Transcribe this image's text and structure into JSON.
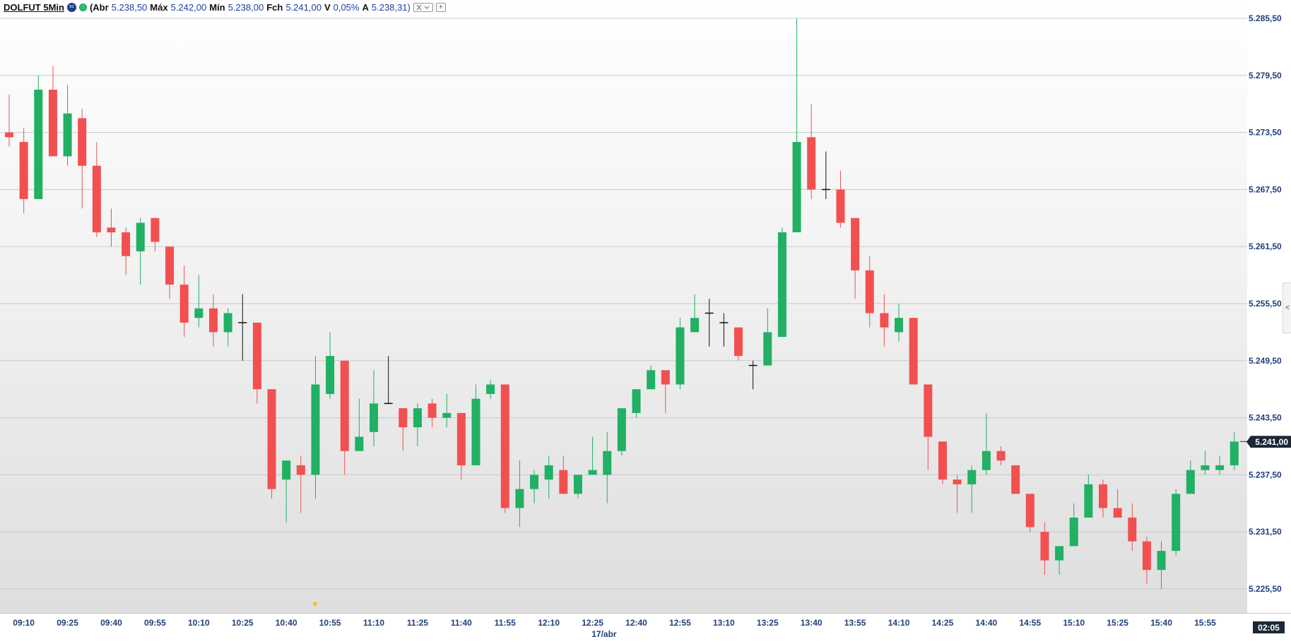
{
  "header": {
    "symbol": "DOLFUT",
    "interval": "5Min",
    "open_label": "(Abr",
    "open_value": "5.238,50",
    "high_label": "Máx",
    "high_value": "5.242,00",
    "low_label": "Mín",
    "low_value": "5.238,00",
    "close_label": "Fch",
    "close_value": "5.241,00",
    "change_label": "V",
    "change_value": "0,05%",
    "avg_label": "A",
    "avg_value": "5.238,31)",
    "settings_icon": "tools-icon",
    "add_icon": "plus-icon",
    "add_glyph": "+"
  },
  "current_price": "5.241,00",
  "countdown": "02:05",
  "date_label": "17/abr",
  "side_tab_glyph": "<",
  "colors": {
    "up": "#21b064",
    "down": "#f25050",
    "doji": "#111111",
    "grid": "#c9c9c9",
    "axis_text": "#1f3f7a"
  },
  "chart_data": {
    "type": "candlestick",
    "title": "",
    "xlabel": "",
    "ylabel": "",
    "ylim": [
      5225.5,
      5285.5
    ],
    "y_ticks": [
      5225.5,
      5231.5,
      5237.5,
      5243.5,
      5249.5,
      5255.5,
      5261.5,
      5267.5,
      5273.5,
      5279.5,
      5285.5
    ],
    "y_tick_labels": [
      "5.225,50",
      "5.231,50",
      "5.237,50",
      "5.243,50",
      "5.249,50",
      "5.255,50",
      "5.261,50",
      "5.267,50",
      "5.273,50",
      "5.279,50",
      "5.285,50"
    ],
    "x_tick_labels": [
      "09:10",
      "09:25",
      "09:40",
      "09:55",
      "10:10",
      "10:25",
      "10:40",
      "10:55",
      "11:10",
      "11:25",
      "11:40",
      "11:55",
      "12:10",
      "12:25",
      "12:40",
      "12:55",
      "13:10",
      "13:25",
      "13:40",
      "13:55",
      "14:10",
      "14:25",
      "14:40",
      "14:55",
      "15:10",
      "15:25",
      "15:40",
      "15:55"
    ],
    "first_bar_time": "09:05",
    "bar_interval_minutes": 5,
    "grid": true,
    "candles": [
      {
        "t": "09:05",
        "o": 5273.5,
        "h": 5277.5,
        "l": 5272.0,
        "c": 5273.0
      },
      {
        "t": "09:10",
        "o": 5272.5,
        "h": 5274.0,
        "l": 5265.0,
        "c": 5266.5
      },
      {
        "t": "09:15",
        "o": 5266.5,
        "h": 5279.5,
        "l": 5266.5,
        "c": 5278.0
      },
      {
        "t": "09:20",
        "o": 5278.0,
        "h": 5280.5,
        "l": 5271.0,
        "c": 5271.0
      },
      {
        "t": "09:25",
        "o": 5271.0,
        "h": 5278.5,
        "l": 5270.0,
        "c": 5275.5
      },
      {
        "t": "09:30",
        "o": 5275.0,
        "h": 5276.0,
        "l": 5265.5,
        "c": 5270.0
      },
      {
        "t": "09:35",
        "o": 5270.0,
        "h": 5272.5,
        "l": 5262.5,
        "c": 5263.0
      },
      {
        "t": "09:40",
        "o": 5263.5,
        "h": 5265.5,
        "l": 5261.5,
        "c": 5263.0
      },
      {
        "t": "09:45",
        "o": 5263.0,
        "h": 5263.5,
        "l": 5258.5,
        "c": 5260.5
      },
      {
        "t": "09:50",
        "o": 5261.0,
        "h": 5264.5,
        "l": 5257.5,
        "c": 5264.0
      },
      {
        "t": "09:55",
        "o": 5264.5,
        "h": 5264.5,
        "l": 5261.0,
        "c": 5262.0
      },
      {
        "t": "10:00",
        "o": 5261.5,
        "h": 5261.5,
        "l": 5256.0,
        "c": 5257.5
      },
      {
        "t": "10:05",
        "o": 5257.5,
        "h": 5259.5,
        "l": 5252.0,
        "c": 5253.5
      },
      {
        "t": "10:10",
        "o": 5254.0,
        "h": 5258.5,
        "l": 5253.0,
        "c": 5255.0
      },
      {
        "t": "10:15",
        "o": 5255.0,
        "h": 5256.5,
        "l": 5251.0,
        "c": 5252.5
      },
      {
        "t": "10:20",
        "o": 5252.5,
        "h": 5255.0,
        "l": 5251.0,
        "c": 5254.5
      },
      {
        "t": "10:25",
        "o": 5253.5,
        "h": 5256.5,
        "l": 5249.5,
        "c": 5253.5
      },
      {
        "t": "10:30",
        "o": 5253.5,
        "h": 5253.5,
        "l": 5245.0,
        "c": 5246.5
      },
      {
        "t": "10:35",
        "o": 5246.5,
        "h": 5246.5,
        "l": 5235.0,
        "c": 5236.0
      },
      {
        "t": "10:40",
        "o": 5237.0,
        "h": 5239.0,
        "l": 5232.5,
        "c": 5239.0
      },
      {
        "t": "10:45",
        "o": 5238.5,
        "h": 5239.5,
        "l": 5233.5,
        "c": 5237.5
      },
      {
        "t": "10:50",
        "o": 5237.5,
        "h": 5250.0,
        "l": 5235.0,
        "c": 5247.0
      },
      {
        "t": "10:55",
        "o": 5246.0,
        "h": 5252.5,
        "l": 5245.5,
        "c": 5250.0
      },
      {
        "t": "11:00",
        "o": 5249.5,
        "h": 5249.5,
        "l": 5237.5,
        "c": 5240.0
      },
      {
        "t": "11:05",
        "o": 5240.0,
        "h": 5245.5,
        "l": 5240.0,
        "c": 5241.5
      },
      {
        "t": "11:10",
        "o": 5242.0,
        "h": 5248.5,
        "l": 5240.5,
        "c": 5245.0
      },
      {
        "t": "11:15",
        "o": 5245.0,
        "h": 5250.0,
        "l": 5245.0,
        "c": 5245.0
      },
      {
        "t": "11:20",
        "o": 5244.5,
        "h": 5244.5,
        "l": 5240.0,
        "c": 5242.5
      },
      {
        "t": "11:25",
        "o": 5242.5,
        "h": 5245.0,
        "l": 5240.5,
        "c": 5244.5
      },
      {
        "t": "11:30",
        "o": 5245.0,
        "h": 5245.5,
        "l": 5242.5,
        "c": 5243.5
      },
      {
        "t": "11:35",
        "o": 5243.5,
        "h": 5246.0,
        "l": 5242.5,
        "c": 5244.0
      },
      {
        "t": "11:40",
        "o": 5244.0,
        "h": 5244.0,
        "l": 5237.0,
        "c": 5238.5
      },
      {
        "t": "11:45",
        "o": 5238.5,
        "h": 5247.0,
        "l": 5238.5,
        "c": 5245.5
      },
      {
        "t": "11:50",
        "o": 5246.0,
        "h": 5247.5,
        "l": 5245.5,
        "c": 5247.0
      },
      {
        "t": "11:55",
        "o": 5247.0,
        "h": 5247.0,
        "l": 5233.5,
        "c": 5234.0
      },
      {
        "t": "12:00",
        "o": 5234.0,
        "h": 5239.0,
        "l": 5232.0,
        "c": 5236.0
      },
      {
        "t": "12:05",
        "o": 5236.0,
        "h": 5238.0,
        "l": 5234.5,
        "c": 5237.5
      },
      {
        "t": "12:10",
        "o": 5237.0,
        "h": 5239.5,
        "l": 5235.0,
        "c": 5238.5
      },
      {
        "t": "12:15",
        "o": 5238.0,
        "h": 5239.5,
        "l": 5235.5,
        "c": 5235.5
      },
      {
        "t": "12:20",
        "o": 5235.5,
        "h": 5237.5,
        "l": 5235.0,
        "c": 5237.5
      },
      {
        "t": "12:25",
        "o": 5237.5,
        "h": 5241.5,
        "l": 5237.5,
        "c": 5238.0
      },
      {
        "t": "12:30",
        "o": 5237.5,
        "h": 5242.0,
        "l": 5234.5,
        "c": 5240.0
      },
      {
        "t": "12:35",
        "o": 5240.0,
        "h": 5244.5,
        "l": 5239.5,
        "c": 5244.5
      },
      {
        "t": "12:40",
        "o": 5244.0,
        "h": 5246.5,
        "l": 5243.5,
        "c": 5246.5
      },
      {
        "t": "12:45",
        "o": 5246.5,
        "h": 5249.0,
        "l": 5246.5,
        "c": 5248.5
      },
      {
        "t": "12:50",
        "o": 5248.5,
        "h": 5248.5,
        "l": 5244.0,
        "c": 5247.0
      },
      {
        "t": "12:55",
        "o": 5247.0,
        "h": 5254.0,
        "l": 5246.5,
        "c": 5253.0
      },
      {
        "t": "13:00",
        "o": 5252.5,
        "h": 5256.5,
        "l": 5252.5,
        "c": 5254.0
      },
      {
        "t": "13:05",
        "o": 5254.5,
        "h": 5256.0,
        "l": 5251.0,
        "c": 5254.5
      },
      {
        "t": "13:10",
        "o": 5253.5,
        "h": 5254.5,
        "l": 5251.0,
        "c": 5253.5
      },
      {
        "t": "13:15",
        "o": 5253.0,
        "h": 5253.0,
        "l": 5249.5,
        "c": 5250.0
      },
      {
        "t": "13:20",
        "o": 5249.0,
        "h": 5249.5,
        "l": 5246.5,
        "c": 5249.0
      },
      {
        "t": "13:25",
        "o": 5249.0,
        "h": 5255.0,
        "l": 5249.0,
        "c": 5252.5
      },
      {
        "t": "13:30",
        "o": 5252.0,
        "h": 5263.5,
        "l": 5252.0,
        "c": 5263.0
      },
      {
        "t": "13:35",
        "o": 5263.0,
        "h": 5285.5,
        "l": 5263.0,
        "c": 5272.5
      },
      {
        "t": "13:40",
        "o": 5273.0,
        "h": 5276.5,
        "l": 5266.5,
        "c": 5267.5
      },
      {
        "t": "13:45",
        "o": 5267.5,
        "h": 5271.5,
        "l": 5266.5,
        "c": 5267.5
      },
      {
        "t": "13:50",
        "o": 5267.5,
        "h": 5269.5,
        "l": 5263.5,
        "c": 5264.0
      },
      {
        "t": "13:55",
        "o": 5264.5,
        "h": 5264.5,
        "l": 5256.0,
        "c": 5259.0
      },
      {
        "t": "14:00",
        "o": 5259.0,
        "h": 5260.5,
        "l": 5253.0,
        "c": 5254.5
      },
      {
        "t": "14:05",
        "o": 5254.5,
        "h": 5256.5,
        "l": 5251.0,
        "c": 5253.0
      },
      {
        "t": "14:10",
        "o": 5252.5,
        "h": 5255.5,
        "l": 5251.5,
        "c": 5254.0
      },
      {
        "t": "14:15",
        "o": 5254.0,
        "h": 5254.0,
        "l": 5247.0,
        "c": 5247.0
      },
      {
        "t": "14:20",
        "o": 5247.0,
        "h": 5247.0,
        "l": 5238.0,
        "c": 5241.5
      },
      {
        "t": "14:25",
        "o": 5241.0,
        "h": 5241.0,
        "l": 5236.5,
        "c": 5237.0
      },
      {
        "t": "14:30",
        "o": 5237.0,
        "h": 5237.5,
        "l": 5233.5,
        "c": 5236.5
      },
      {
        "t": "14:35",
        "o": 5236.5,
        "h": 5238.5,
        "l": 5233.5,
        "c": 5238.0
      },
      {
        "t": "14:40",
        "o": 5238.0,
        "h": 5244.0,
        "l": 5237.5,
        "c": 5240.0
      },
      {
        "t": "14:45",
        "o": 5240.0,
        "h": 5240.5,
        "l": 5238.5,
        "c": 5239.0
      },
      {
        "t": "14:50",
        "o": 5238.5,
        "h": 5238.5,
        "l": 5235.5,
        "c": 5235.5
      },
      {
        "t": "14:55",
        "o": 5235.5,
        "h": 5235.5,
        "l": 5231.5,
        "c": 5232.0
      },
      {
        "t": "15:00",
        "o": 5231.5,
        "h": 5232.5,
        "l": 5227.0,
        "c": 5228.5
      },
      {
        "t": "15:05",
        "o": 5228.5,
        "h": 5230.0,
        "l": 5227.0,
        "c": 5230.0
      },
      {
        "t": "15:10",
        "o": 5230.0,
        "h": 5234.5,
        "l": 5230.0,
        "c": 5233.0
      },
      {
        "t": "15:15",
        "o": 5233.0,
        "h": 5237.5,
        "l": 5233.0,
        "c": 5236.5
      },
      {
        "t": "15:20",
        "o": 5236.5,
        "h": 5237.0,
        "l": 5233.0,
        "c": 5234.0
      },
      {
        "t": "15:25",
        "o": 5234.0,
        "h": 5236.0,
        "l": 5233.0,
        "c": 5233.0
      },
      {
        "t": "15:30",
        "o": 5233.0,
        "h": 5234.5,
        "l": 5229.5,
        "c": 5230.5
      },
      {
        "t": "15:35",
        "o": 5230.5,
        "h": 5231.0,
        "l": 5226.0,
        "c": 5227.5
      },
      {
        "t": "15:40",
        "o": 5227.5,
        "h": 5230.5,
        "l": 5225.5,
        "c": 5229.5
      },
      {
        "t": "15:45",
        "o": 5229.5,
        "h": 5236.0,
        "l": 5229.0,
        "c": 5235.5
      },
      {
        "t": "15:50",
        "o": 5235.5,
        "h": 5239.0,
        "l": 5235.5,
        "c": 5238.0
      },
      {
        "t": "15:55",
        "o": 5238.0,
        "h": 5240.0,
        "l": 5237.5,
        "c": 5238.5
      },
      {
        "t": "16:00",
        "o": 5238.0,
        "h": 5239.5,
        "l": 5237.5,
        "c": 5238.5
      },
      {
        "t": "16:05",
        "o": 5238.5,
        "h": 5242.0,
        "l": 5238.0,
        "c": 5241.0
      }
    ]
  }
}
